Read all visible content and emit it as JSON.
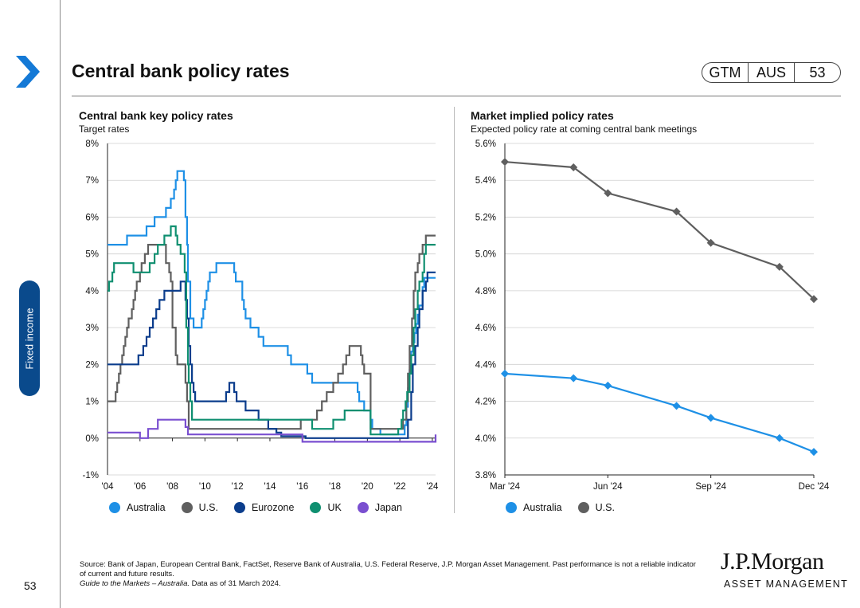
{
  "header": {
    "title": "Central bank policy rates",
    "badge": [
      "GTM",
      "AUS",
      "53"
    ]
  },
  "sidebar": {
    "section_label": "Fixed income",
    "page_number": "53"
  },
  "colors": {
    "australia": "#1e90e6",
    "us": "#5f5f5f",
    "eurozone": "#0b3d8c",
    "uk": "#0f8f70",
    "japan": "#7a4fd0",
    "brand_blue": "#1479d6"
  },
  "left_chart": {
    "title": "Central bank key policy rates",
    "subtitle": "Target rates",
    "legend": [
      "Australia",
      "U.S.",
      "Eurozone",
      "UK",
      "Japan"
    ]
  },
  "right_chart": {
    "title": "Market implied policy rates",
    "subtitle": "Expected policy rate at coming central bank meetings",
    "legend": [
      "Australia",
      "U.S."
    ]
  },
  "chart_data": [
    {
      "type": "line",
      "title": "Central bank key policy rates",
      "subtitle": "Target rates",
      "xlabel": "",
      "ylabel": "",
      "x_ticks": [
        "'04",
        "'06",
        "'08",
        "'10",
        "'12",
        "'14",
        "'16",
        "'18",
        "'20",
        "'22",
        "'24"
      ],
      "xlim": [
        2004,
        2024.2
      ],
      "y_ticks": [
        "-1%",
        "0%",
        "1%",
        "2%",
        "3%",
        "4%",
        "5%",
        "6%",
        "7%",
        "8%"
      ],
      "ylim": [
        -1,
        8
      ],
      "step": true,
      "series": [
        {
          "name": "Australia",
          "key": "australia",
          "points": [
            [
              2004,
              5.25
            ],
            [
              2005.2,
              5.5
            ],
            [
              2006.4,
              5.75
            ],
            [
              2006.9,
              6.0
            ],
            [
              2007.6,
              6.25
            ],
            [
              2007.9,
              6.5
            ],
            [
              2008.1,
              6.75
            ],
            [
              2008.2,
              7.0
            ],
            [
              2008.3,
              7.25
            ],
            [
              2008.7,
              7.0
            ],
            [
              2008.8,
              6.0
            ],
            [
              2008.9,
              5.25
            ],
            [
              2008.95,
              4.25
            ],
            [
              2009.1,
              3.25
            ],
            [
              2009.3,
              3.0
            ],
            [
              2009.8,
              3.25
            ],
            [
              2009.9,
              3.5
            ],
            [
              2010,
              3.75
            ],
            [
              2010.1,
              4.0
            ],
            [
              2010.2,
              4.25
            ],
            [
              2010.3,
              4.5
            ],
            [
              2010.7,
              4.75
            ],
            [
              2011.8,
              4.5
            ],
            [
              2011.9,
              4.25
            ],
            [
              2012.3,
              3.75
            ],
            [
              2012.4,
              3.5
            ],
            [
              2012.5,
              3.25
            ],
            [
              2012.8,
              3.0
            ],
            [
              2013.3,
              2.75
            ],
            [
              2013.6,
              2.5
            ],
            [
              2015.1,
              2.25
            ],
            [
              2015.3,
              2.0
            ],
            [
              2016.3,
              1.75
            ],
            [
              2016.6,
              1.5
            ],
            [
              2019.4,
              1.25
            ],
            [
              2019.5,
              1.0
            ],
            [
              2019.8,
              0.75
            ],
            [
              2020.2,
              0.5
            ],
            [
              2020.3,
              0.25
            ],
            [
              2020.8,
              0.1
            ],
            [
              2022.3,
              0.35
            ],
            [
              2022.4,
              0.85
            ],
            [
              2022.5,
              1.35
            ],
            [
              2022.6,
              1.85
            ],
            [
              2022.7,
              2.35
            ],
            [
              2022.8,
              2.6
            ],
            [
              2022.9,
              2.85
            ],
            [
              2023.0,
              3.1
            ],
            [
              2023.1,
              3.35
            ],
            [
              2023.2,
              3.6
            ],
            [
              2023.4,
              4.1
            ],
            [
              2023.5,
              4.35
            ],
            [
              2024.2,
              4.35
            ]
          ]
        },
        {
          "name": "U.S.",
          "key": "us",
          "points": [
            [
              2004,
              1.0
            ],
            [
              2004.5,
              1.25
            ],
            [
              2004.6,
              1.5
            ],
            [
              2004.7,
              1.75
            ],
            [
              2004.8,
              2.0
            ],
            [
              2004.9,
              2.25
            ],
            [
              2005.0,
              2.5
            ],
            [
              2005.1,
              2.75
            ],
            [
              2005.2,
              3.0
            ],
            [
              2005.3,
              3.25
            ],
            [
              2005.5,
              3.5
            ],
            [
              2005.6,
              3.75
            ],
            [
              2005.7,
              4.0
            ],
            [
              2005.8,
              4.25
            ],
            [
              2006.0,
              4.5
            ],
            [
              2006.1,
              4.75
            ],
            [
              2006.3,
              5.0
            ],
            [
              2006.5,
              5.25
            ],
            [
              2007.6,
              4.75
            ],
            [
              2007.8,
              4.5
            ],
            [
              2007.9,
              4.25
            ],
            [
              2008.0,
              3.0
            ],
            [
              2008.2,
              2.25
            ],
            [
              2008.3,
              2.0
            ],
            [
              2008.8,
              1.5
            ],
            [
              2008.9,
              1.0
            ],
            [
              2009.0,
              0.25
            ],
            [
              2015.9,
              0.5
            ],
            [
              2016.9,
              0.75
            ],
            [
              2017.2,
              1.0
            ],
            [
              2017.5,
              1.25
            ],
            [
              2017.9,
              1.5
            ],
            [
              2018.2,
              1.75
            ],
            [
              2018.5,
              2.0
            ],
            [
              2018.7,
              2.25
            ],
            [
              2018.9,
              2.5
            ],
            [
              2019.6,
              2.25
            ],
            [
              2019.7,
              2.0
            ],
            [
              2019.8,
              1.75
            ],
            [
              2020.2,
              0.25
            ],
            [
              2022.2,
              0.5
            ],
            [
              2022.4,
              1.0
            ],
            [
              2022.5,
              1.75
            ],
            [
              2022.6,
              2.5
            ],
            [
              2022.75,
              3.25
            ],
            [
              2022.85,
              4.0
            ],
            [
              2022.95,
              4.5
            ],
            [
              2023.1,
              4.75
            ],
            [
              2023.2,
              5.0
            ],
            [
              2023.4,
              5.25
            ],
            [
              2023.6,
              5.5
            ],
            [
              2024.2,
              5.5
            ]
          ]
        },
        {
          "name": "Eurozone",
          "key": "eurozone",
          "points": [
            [
              2004,
              2.0
            ],
            [
              2005.9,
              2.25
            ],
            [
              2006.2,
              2.5
            ],
            [
              2006.4,
              2.75
            ],
            [
              2006.6,
              3.0
            ],
            [
              2006.8,
              3.25
            ],
            [
              2007.0,
              3.5
            ],
            [
              2007.2,
              3.75
            ],
            [
              2007.5,
              4.0
            ],
            [
              2008.5,
              4.25
            ],
            [
              2008.8,
              3.75
            ],
            [
              2008.9,
              3.25
            ],
            [
              2009.0,
              2.5
            ],
            [
              2009.1,
              2.0
            ],
            [
              2009.2,
              1.5
            ],
            [
              2009.3,
              1.25
            ],
            [
              2009.4,
              1.0
            ],
            [
              2011.3,
              1.25
            ],
            [
              2011.5,
              1.5
            ],
            [
              2011.8,
              1.25
            ],
            [
              2011.95,
              1.0
            ],
            [
              2012.5,
              0.75
            ],
            [
              2013.3,
              0.5
            ],
            [
              2013.9,
              0.25
            ],
            [
              2014.4,
              0.15
            ],
            [
              2014.7,
              0.05
            ],
            [
              2016.2,
              0.0
            ],
            [
              2022.5,
              0.5
            ],
            [
              2022.7,
              1.25
            ],
            [
              2022.8,
              2.0
            ],
            [
              2022.95,
              2.5
            ],
            [
              2023.1,
              3.0
            ],
            [
              2023.2,
              3.5
            ],
            [
              2023.4,
              4.0
            ],
            [
              2023.6,
              4.25
            ],
            [
              2023.7,
              4.5
            ],
            [
              2024.2,
              4.5
            ]
          ]
        },
        {
          "name": "UK",
          "key": "uk",
          "points": [
            [
              2004,
              4.0
            ],
            [
              2004.1,
              4.25
            ],
            [
              2004.3,
              4.5
            ],
            [
              2004.4,
              4.75
            ],
            [
              2005.6,
              4.5
            ],
            [
              2006.6,
              4.75
            ],
            [
              2006.9,
              5.0
            ],
            [
              2007.1,
              5.25
            ],
            [
              2007.5,
              5.5
            ],
            [
              2007.9,
              5.75
            ],
            [
              2008.2,
              5.5
            ],
            [
              2008.3,
              5.25
            ],
            [
              2008.5,
              5.0
            ],
            [
              2008.75,
              4.5
            ],
            [
              2008.85,
              3.0
            ],
            [
              2008.95,
              2.0
            ],
            [
              2009.0,
              1.5
            ],
            [
              2009.1,
              1.0
            ],
            [
              2009.2,
              0.5
            ],
            [
              2016.6,
              0.25
            ],
            [
              2017.9,
              0.5
            ],
            [
              2018.6,
              0.75
            ],
            [
              2020.2,
              0.1
            ],
            [
              2021.9,
              0.25
            ],
            [
              2022.1,
              0.5
            ],
            [
              2022.2,
              0.75
            ],
            [
              2022.35,
              1.0
            ],
            [
              2022.45,
              1.25
            ],
            [
              2022.6,
              1.75
            ],
            [
              2022.7,
              2.25
            ],
            [
              2022.85,
              3.0
            ],
            [
              2022.95,
              3.5
            ],
            [
              2023.1,
              4.0
            ],
            [
              2023.2,
              4.25
            ],
            [
              2023.4,
              4.5
            ],
            [
              2023.5,
              5.0
            ],
            [
              2023.6,
              5.25
            ],
            [
              2024.2,
              5.25
            ]
          ]
        },
        {
          "name": "Japan",
          "key": "japan",
          "points": [
            [
              2004,
              0.15
            ],
            [
              2006.0,
              0.0
            ],
            [
              2006.5,
              0.25
            ],
            [
              2007.1,
              0.5
            ],
            [
              2008.8,
              0.3
            ],
            [
              2008.95,
              0.1
            ],
            [
              2016.0,
              -0.1
            ],
            [
              2024.15,
              -0.1
            ],
            [
              2024.2,
              0.1
            ]
          ]
        }
      ]
    },
    {
      "type": "line",
      "title": "Market implied policy rates",
      "subtitle": "Expected policy rate at coming central bank meetings",
      "xlabel": "",
      "ylabel": "",
      "x_ticks": [
        "Mar '24",
        "Jun '24",
        "Sep '24",
        "Dec '24"
      ],
      "xlim": [
        0,
        9
      ],
      "y_ticks": [
        "3.8%",
        "4.0%",
        "4.2%",
        "4.4%",
        "4.6%",
        "4.8%",
        "5.0%",
        "5.2%",
        "5.4%",
        "5.6%"
      ],
      "ylim": [
        3.8,
        5.6
      ],
      "series": [
        {
          "name": "Australia",
          "key": "australia",
          "points": [
            [
              0,
              4.35
            ],
            [
              2,
              4.325
            ],
            [
              3,
              4.285
            ],
            [
              5,
              4.175
            ],
            [
              6,
              4.11
            ],
            [
              8,
              4.0
            ],
            [
              9,
              3.925
            ]
          ]
        },
        {
          "name": "U.S.",
          "key": "us",
          "points": [
            [
              0,
              5.5
            ],
            [
              2,
              5.47
            ],
            [
              3,
              5.33
            ],
            [
              5,
              5.23
            ],
            [
              6,
              5.06
            ],
            [
              8,
              4.93
            ],
            [
              9,
              4.755
            ]
          ]
        }
      ]
    }
  ],
  "footer": {
    "source": "Source: Bank of Japan, European Central Bank, FactSet, Reserve Bank of Australia, U.S. Federal Reserve, J.P. Morgan Asset Management. Past performance is not a reliable indicator of current and future results.",
    "guide_title": "Guide to the Markets – Australia.",
    "data_date": " Data as of 31 March 2024."
  },
  "logo": {
    "line1": "J.P.Morgan",
    "line2": "ASSET MANAGEMENT"
  }
}
